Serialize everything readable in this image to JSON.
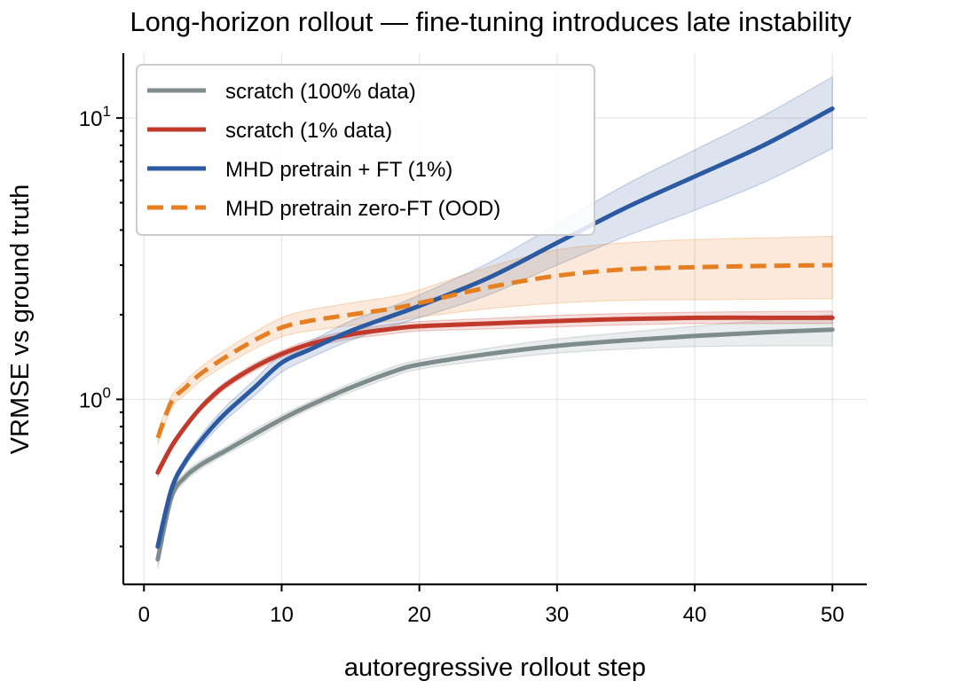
{
  "chart_data": {
    "type": "line",
    "title": "Long-horizon rollout — fine-tuning introduces late instability",
    "xlabel": "autoregressive rollout step",
    "ylabel": "VRMSE vs ground truth",
    "xlim": [
      -1.5,
      52.5
    ],
    "ylim": [
      0.22,
      17
    ],
    "yscale": "log",
    "grid": true,
    "legend_position": "top-left",
    "x_ticks": [
      0,
      10,
      20,
      30,
      40,
      50
    ],
    "x_tick_labels": [
      "0",
      "10",
      "20",
      "30",
      "40",
      "50"
    ],
    "y_ticks": [
      1,
      10
    ],
    "y_tick_labels": [
      {
        "base": "10",
        "exp": "0"
      },
      {
        "base": "10",
        "exp": "1"
      }
    ],
    "x": [
      1,
      2,
      3,
      4,
      5,
      6,
      8,
      10,
      12,
      15,
      18,
      20,
      25,
      30,
      35,
      40,
      45,
      50
    ],
    "series": [
      {
        "name": "scratch (100% data)",
        "color": "#7f8c8d",
        "dash": "solid",
        "values": [
          0.27,
          0.45,
          0.53,
          0.58,
          0.62,
          0.66,
          0.75,
          0.85,
          0.95,
          1.1,
          1.25,
          1.33,
          1.45,
          1.55,
          1.62,
          1.68,
          1.73,
          1.77
        ],
        "lower": [
          0.25,
          0.43,
          0.51,
          0.56,
          0.6,
          0.64,
          0.72,
          0.82,
          0.92,
          1.06,
          1.2,
          1.28,
          1.38,
          1.46,
          1.51,
          1.54,
          1.55,
          1.55
        ],
        "upper": [
          0.29,
          0.47,
          0.55,
          0.6,
          0.64,
          0.68,
          0.78,
          0.88,
          0.98,
          1.14,
          1.3,
          1.38,
          1.52,
          1.64,
          1.73,
          1.82,
          1.91,
          2.0
        ]
      },
      {
        "name": "scratch (1% data)",
        "color": "#c0392b",
        "dash": "solid",
        "values": [
          0.55,
          0.68,
          0.8,
          0.92,
          1.03,
          1.13,
          1.3,
          1.45,
          1.57,
          1.7,
          1.78,
          1.82,
          1.86,
          1.9,
          1.93,
          1.95,
          1.95,
          1.95
        ],
        "lower": [
          0.53,
          0.66,
          0.78,
          0.9,
          1.0,
          1.1,
          1.26,
          1.41,
          1.52,
          1.64,
          1.71,
          1.75,
          1.78,
          1.81,
          1.84,
          1.86,
          1.86,
          1.86
        ],
        "upper": [
          0.57,
          0.7,
          0.82,
          0.94,
          1.06,
          1.16,
          1.34,
          1.49,
          1.62,
          1.76,
          1.85,
          1.89,
          1.94,
          1.99,
          2.02,
          2.04,
          2.05,
          2.06
        ]
      },
      {
        "name": "MHD pretrain + FT (1%)",
        "color": "#2c5aa0",
        "dash": "solid",
        "values": [
          0.3,
          0.48,
          0.6,
          0.7,
          0.8,
          0.9,
          1.1,
          1.35,
          1.5,
          1.75,
          1.98,
          2.15,
          2.7,
          3.6,
          4.8,
          6.2,
          8.0,
          10.8
        ],
        "lower": [
          0.28,
          0.46,
          0.58,
          0.67,
          0.76,
          0.85,
          1.03,
          1.25,
          1.4,
          1.62,
          1.82,
          1.95,
          2.35,
          3.0,
          3.8,
          4.7,
          5.9,
          7.8
        ],
        "upper": [
          0.32,
          0.5,
          0.62,
          0.73,
          0.84,
          0.95,
          1.17,
          1.45,
          1.6,
          1.9,
          2.14,
          2.35,
          3.05,
          4.2,
          5.8,
          7.7,
          10.2,
          14.0
        ]
      },
      {
        "name": "MHD pretrain zero-FT (OOD)",
        "color": "#e67e22",
        "dash": "dashed",
        "values": [
          0.73,
          0.98,
          1.1,
          1.22,
          1.32,
          1.42,
          1.62,
          1.8,
          1.9,
          2.0,
          2.1,
          2.2,
          2.5,
          2.75,
          2.9,
          2.95,
          2.98,
          3.0
        ],
        "lower": [
          0.69,
          0.93,
          1.04,
          1.15,
          1.24,
          1.33,
          1.51,
          1.67,
          1.75,
          1.83,
          1.9,
          1.96,
          2.1,
          2.2,
          2.25,
          2.26,
          2.27,
          2.28
        ],
        "upper": [
          0.77,
          1.03,
          1.16,
          1.29,
          1.4,
          1.51,
          1.73,
          1.95,
          2.08,
          2.2,
          2.32,
          2.45,
          2.95,
          3.4,
          3.6,
          3.7,
          3.75,
          3.8
        ]
      }
    ]
  }
}
